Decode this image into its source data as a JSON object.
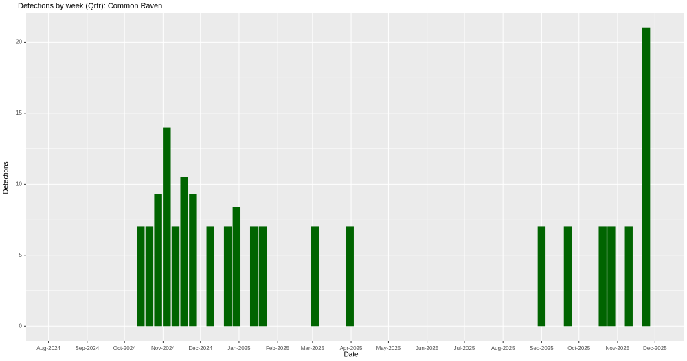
{
  "chart_data": {
    "type": "bar",
    "title": "Detections by week (Qrtr): Common Raven",
    "x_label": "Date",
    "y_label": "Detections",
    "x": [
      "2024-10-14",
      "2024-10-21",
      "2024-10-28",
      "2024-11-04",
      "2024-11-11",
      "2024-11-18",
      "2024-11-25",
      "2024-12-09",
      "2024-12-23",
      "2024-12-30",
      "2025-01-13",
      "2025-01-20",
      "2025-03-03",
      "2025-03-31",
      "2025-09-01",
      "2025-09-22",
      "2025-10-20",
      "2025-10-27",
      "2025-11-10",
      "2025-11-24"
    ],
    "values": [
      7,
      7,
      9.33,
      14,
      7,
      10.5,
      9.33,
      7,
      7,
      8.4,
      7,
      7,
      7,
      7,
      7,
      7,
      7,
      7,
      7,
      21
    ],
    "color": "#006400",
    "xlim": [
      "2024-07-14",
      "2025-12-24"
    ],
    "xticks": [
      {
        "value": "2024-08-01",
        "label": "Aug-2024"
      },
      {
        "value": "2024-09-01",
        "label": "Sep-2024"
      },
      {
        "value": "2024-10-01",
        "label": "Oct-2024"
      },
      {
        "value": "2024-11-01",
        "label": "Nov-2024"
      },
      {
        "value": "2024-12-01",
        "label": "Dec-2024"
      },
      {
        "value": "2025-01-01",
        "label": "Jan-2025"
      },
      {
        "value": "2025-02-01",
        "label": "Feb-2025"
      },
      {
        "value": "2025-03-01",
        "label": "Mar-2025"
      },
      {
        "value": "2025-04-01",
        "label": "Apr-2025"
      },
      {
        "value": "2025-05-01",
        "label": "May-2025"
      },
      {
        "value": "2025-06-01",
        "label": "Jun-2025"
      },
      {
        "value": "2025-07-01",
        "label": "Jul-2025"
      },
      {
        "value": "2025-08-01",
        "label": "Aug-2025"
      },
      {
        "value": "2025-09-01",
        "label": "Sep-2025"
      },
      {
        "value": "2025-10-01",
        "label": "Oct-2025"
      },
      {
        "value": "2025-11-01",
        "label": "Nov-2025"
      },
      {
        "value": "2025-12-01",
        "label": "Dec-2025"
      }
    ],
    "ylim": [
      -1.05,
      22.05
    ],
    "yticks": [
      0,
      5,
      10,
      15,
      20
    ],
    "grid": true
  }
}
